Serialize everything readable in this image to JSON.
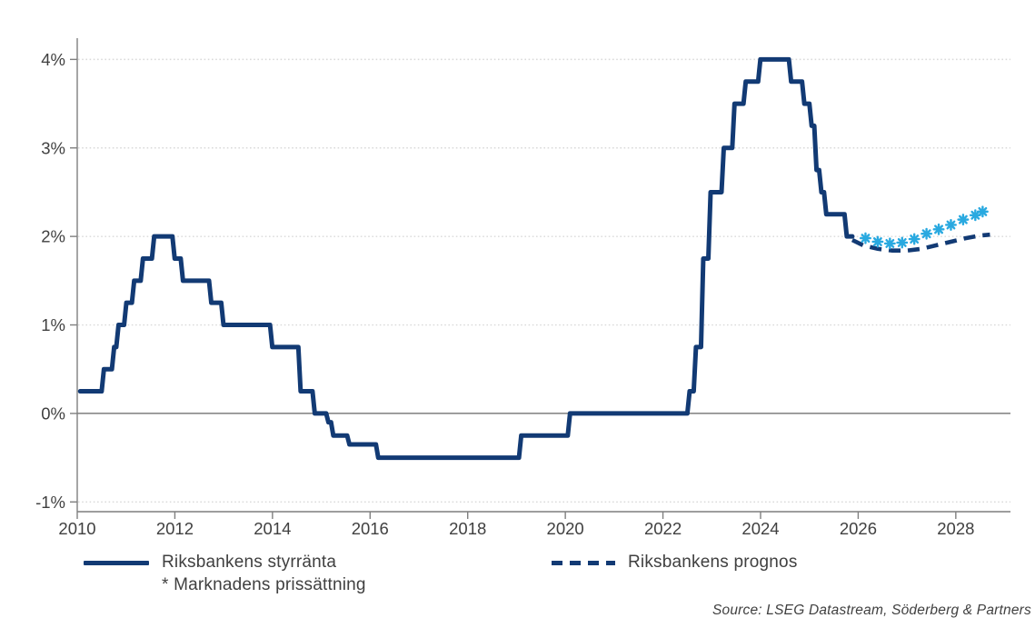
{
  "page": {
    "background": "#ffffff"
  },
  "colors": {
    "navy": "#123a74",
    "light_blue": "#29a9e0",
    "text": "#404040",
    "axis": "#7f7f7f",
    "grid": "#d9d9d9",
    "zero_line": "#3f3f3f"
  },
  "legend": {
    "solid_label": "Riksbankens styrränta",
    "market_note": "* Marknadens prissättning",
    "dashed_label": "Riksbankens prognos"
  },
  "source_note": "Source: LSEG Datastream, Söderberg & Partners",
  "chart_data": {
    "type": "line",
    "title": "",
    "xlabel": "",
    "ylabel": "",
    "grid": "horizontal-dotted",
    "legend_position": "bottom",
    "xlim": [
      2010,
      2029.12
    ],
    "ylim": [
      -1.11,
      4.24
    ],
    "x_ticks": [
      {
        "label": "2010",
        "value": 2010
      },
      {
        "label": "2012",
        "value": 2012
      },
      {
        "label": "2014",
        "value": 2014
      },
      {
        "label": "2016",
        "value": 2016
      },
      {
        "label": "2018",
        "value": 2018
      },
      {
        "label": "2020",
        "value": 2020
      },
      {
        "label": "2022",
        "value": 2022
      },
      {
        "label": "2024",
        "value": 2024
      },
      {
        "label": "2026",
        "value": 2026
      },
      {
        "label": "2028",
        "value": 2028
      }
    ],
    "y_ticks": [
      {
        "label": "4%",
        "value": 4
      },
      {
        "label": "3%",
        "value": 3
      },
      {
        "label": "2%",
        "value": 2
      },
      {
        "label": "1%",
        "value": 1
      },
      {
        "label": "0%",
        "value": 0
      },
      {
        "label": "-1%",
        "value": -1
      }
    ],
    "series": [
      {
        "name": "Riksbankens styrränta",
        "type": "step-line",
        "color_key": "navy",
        "end_x": 2025.88,
        "points": [
          [
            2010.06,
            0.25
          ],
          [
            2010.5,
            0.5
          ],
          [
            2010.71,
            0.75
          ],
          [
            2010.8,
            1.0
          ],
          [
            2010.96,
            1.25
          ],
          [
            2011.12,
            1.5
          ],
          [
            2011.3,
            1.75
          ],
          [
            2011.53,
            2.0
          ],
          [
            2011.95,
            1.75
          ],
          [
            2012.12,
            1.5
          ],
          [
            2012.7,
            1.25
          ],
          [
            2012.95,
            1.0
          ],
          [
            2013.95,
            0.75
          ],
          [
            2014.53,
            0.25
          ],
          [
            2014.82,
            0.0
          ],
          [
            2015.1,
            -0.1
          ],
          [
            2015.2,
            -0.25
          ],
          [
            2015.53,
            -0.35
          ],
          [
            2016.12,
            -0.5
          ],
          [
            2019.05,
            -0.25
          ],
          [
            2020.05,
            0.0
          ],
          [
            2022.5,
            0.25
          ],
          [
            2022.63,
            0.75
          ],
          [
            2022.78,
            1.75
          ],
          [
            2022.93,
            2.5
          ],
          [
            2023.2,
            3.0
          ],
          [
            2023.42,
            3.5
          ],
          [
            2023.65,
            3.75
          ],
          [
            2023.95,
            4.0
          ],
          [
            2024.58,
            3.75
          ],
          [
            2024.85,
            3.5
          ],
          [
            2025.0,
            3.25
          ],
          [
            2025.1,
            2.75
          ],
          [
            2025.2,
            2.5
          ],
          [
            2025.3,
            2.25
          ],
          [
            2025.72,
            2.0
          ]
        ]
      },
      {
        "name": "Riksbankens prognos",
        "type": "dashed-line",
        "color_key": "navy",
        "points": [
          [
            2025.88,
            1.96
          ],
          [
            2026.1,
            1.9
          ],
          [
            2026.4,
            1.86
          ],
          [
            2026.7,
            1.84
          ],
          [
            2027.0,
            1.84
          ],
          [
            2027.3,
            1.86
          ],
          [
            2027.6,
            1.9
          ],
          [
            2027.9,
            1.94
          ],
          [
            2028.2,
            1.98
          ],
          [
            2028.5,
            2.01
          ],
          [
            2028.7,
            2.02
          ]
        ]
      },
      {
        "name": "Marknadens prissättning",
        "type": "asterisk-scatter",
        "color_key": "light_blue",
        "points": [
          [
            2026.15,
            1.98
          ],
          [
            2026.4,
            1.94
          ],
          [
            2026.65,
            1.92
          ],
          [
            2026.9,
            1.93
          ],
          [
            2027.15,
            1.97
          ],
          [
            2027.4,
            2.03
          ],
          [
            2027.65,
            2.08
          ],
          [
            2027.9,
            2.13
          ],
          [
            2028.15,
            2.19
          ],
          [
            2028.4,
            2.24
          ],
          [
            2028.55,
            2.28
          ]
        ]
      }
    ]
  }
}
